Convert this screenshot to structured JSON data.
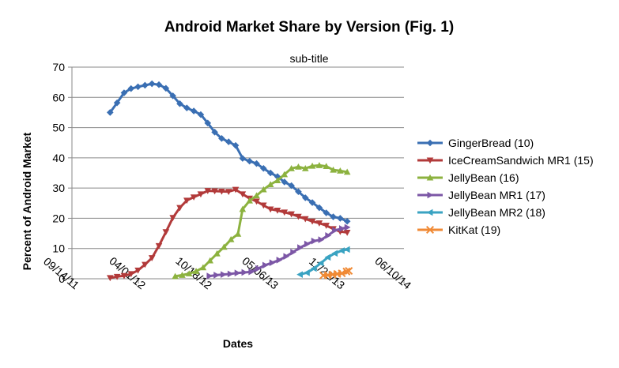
{
  "chart_data": {
    "type": "line",
    "title": "Android Market Share by Version (Fig. 1)",
    "subtitle": "sub-title",
    "xlabel": "Dates",
    "ylabel": "Percent of Android Market",
    "x_axis": {
      "type": "date",
      "min": "2011-09-14",
      "max": "2014-06-10",
      "ticks": [
        "2011-09-14",
        "2012-04-01",
        "2012-10-18",
        "2013-05-06",
        "2013-11-22",
        "2014-06-10"
      ],
      "tick_labels": [
        "09/14/11",
        "04/01/12",
        "10/18/12",
        "05/06/13",
        "11/22/13",
        "06/10/14"
      ]
    },
    "y_axis": {
      "min": 0,
      "max": 70,
      "ticks": [
        0,
        10,
        20,
        30,
        40,
        50,
        60,
        70
      ]
    },
    "grid": "horizontal",
    "legend_position": "right",
    "series": [
      {
        "name": "GingerBread (10)",
        "color": "#3a6fb3",
        "marker": "diamond",
        "points": [
          [
            "2012-01-07",
            55.0
          ],
          [
            "2012-01-28",
            58.2
          ],
          [
            "2012-02-18",
            61.5
          ],
          [
            "2012-03-10",
            62.9
          ],
          [
            "2012-03-31",
            63.5
          ],
          [
            "2012-04-21",
            64.0
          ],
          [
            "2012-05-12",
            64.5
          ],
          [
            "2012-06-02",
            64.2
          ],
          [
            "2012-06-23",
            63.0
          ],
          [
            "2012-07-14",
            60.5
          ],
          [
            "2012-08-04",
            57.9
          ],
          [
            "2012-08-25",
            56.5
          ],
          [
            "2012-09-15",
            55.5
          ],
          [
            "2012-10-06",
            54.3
          ],
          [
            "2012-10-27",
            51.5
          ],
          [
            "2012-11-17",
            48.5
          ],
          [
            "2012-12-08",
            46.4
          ],
          [
            "2012-12-29",
            45.3
          ],
          [
            "2013-01-19",
            44.1
          ],
          [
            "2013-02-09",
            39.8
          ],
          [
            "2013-03-02",
            38.9
          ],
          [
            "2013-03-23",
            38.1
          ],
          [
            "2013-04-13",
            36.5
          ],
          [
            "2013-05-04",
            35.0
          ],
          [
            "2013-05-25",
            33.8
          ],
          [
            "2013-06-15",
            32.0
          ],
          [
            "2013-07-06",
            30.8
          ],
          [
            "2013-07-27",
            28.8
          ],
          [
            "2013-08-17",
            26.8
          ],
          [
            "2013-09-07",
            25.2
          ],
          [
            "2013-09-28",
            23.5
          ],
          [
            "2013-10-19",
            21.8
          ],
          [
            "2013-11-09",
            20.5
          ],
          [
            "2013-11-30",
            20.0
          ],
          [
            "2013-12-21",
            19.0
          ]
        ]
      },
      {
        "name": "IceCreamSandwich MR1 (15)",
        "color": "#b23a3a",
        "marker": "triangle-down",
        "points": [
          [
            "2012-01-07",
            0.3
          ],
          [
            "2012-01-28",
            0.7
          ],
          [
            "2012-02-18",
            1.0
          ],
          [
            "2012-03-10",
            1.6
          ],
          [
            "2012-03-31",
            2.8
          ],
          [
            "2012-04-21",
            4.7
          ],
          [
            "2012-05-12",
            6.9
          ],
          [
            "2012-06-02",
            10.9
          ],
          [
            "2012-06-23",
            15.5
          ],
          [
            "2012-07-14",
            20.2
          ],
          [
            "2012-08-04",
            23.5
          ],
          [
            "2012-08-25",
            25.9
          ],
          [
            "2012-09-15",
            27.0
          ],
          [
            "2012-10-06",
            28.0
          ],
          [
            "2012-10-27",
            29.1
          ],
          [
            "2012-11-17",
            29.0
          ],
          [
            "2012-12-08",
            28.9
          ],
          [
            "2012-12-29",
            28.8
          ],
          [
            "2013-01-19",
            29.5
          ],
          [
            "2013-02-09",
            28.0
          ],
          [
            "2013-03-02",
            26.6
          ],
          [
            "2013-03-23",
            25.6
          ],
          [
            "2013-04-13",
            24.3
          ],
          [
            "2013-05-04",
            23.0
          ],
          [
            "2013-05-25",
            22.6
          ],
          [
            "2013-06-15",
            22.0
          ],
          [
            "2013-07-06",
            21.4
          ],
          [
            "2013-07-27",
            20.6
          ],
          [
            "2013-08-17",
            19.8
          ],
          [
            "2013-09-07",
            19.0
          ],
          [
            "2013-09-28",
            18.4
          ],
          [
            "2013-10-19",
            17.6
          ],
          [
            "2013-11-09",
            16.5
          ],
          [
            "2013-11-30",
            15.6
          ],
          [
            "2013-12-21",
            15.3
          ]
        ]
      },
      {
        "name": "JellyBean (16)",
        "color": "#8cb23f",
        "marker": "triangle-up",
        "points": [
          [
            "2012-07-21",
            0.8
          ],
          [
            "2012-08-11",
            1.2
          ],
          [
            "2012-09-01",
            1.7
          ],
          [
            "2012-09-22",
            2.5
          ],
          [
            "2012-10-13",
            3.7
          ],
          [
            "2012-11-03",
            6.0
          ],
          [
            "2012-11-24",
            8.3
          ],
          [
            "2012-12-15",
            10.5
          ],
          [
            "2013-01-05",
            13.0
          ],
          [
            "2013-01-26",
            14.8
          ],
          [
            "2013-02-09",
            23.0
          ],
          [
            "2013-03-02",
            25.8
          ],
          [
            "2013-03-23",
            27.5
          ],
          [
            "2013-04-13",
            29.5
          ],
          [
            "2013-05-04",
            31.2
          ],
          [
            "2013-05-25",
            32.5
          ],
          [
            "2013-06-15",
            34.5
          ],
          [
            "2013-07-06",
            36.5
          ],
          [
            "2013-07-27",
            37.0
          ],
          [
            "2013-08-17",
            36.5
          ],
          [
            "2013-09-07",
            37.3
          ],
          [
            "2013-09-28",
            37.5
          ],
          [
            "2013-10-19",
            37.2
          ],
          [
            "2013-11-09",
            36.0
          ],
          [
            "2013-11-30",
            35.7
          ],
          [
            "2013-12-21",
            35.3
          ]
        ]
      },
      {
        "name": "JellyBean MR1 (17)",
        "color": "#7c57a6",
        "marker": "triangle-right",
        "points": [
          [
            "2012-11-01",
            0.9
          ],
          [
            "2012-11-22",
            1.2
          ],
          [
            "2012-12-13",
            1.4
          ],
          [
            "2013-01-03",
            1.6
          ],
          [
            "2013-01-24",
            1.9
          ],
          [
            "2013-02-14",
            2.1
          ],
          [
            "2013-03-07",
            2.3
          ],
          [
            "2013-03-28",
            3.4
          ],
          [
            "2013-04-18",
            4.5
          ],
          [
            "2013-05-09",
            5.3
          ],
          [
            "2013-05-30",
            6.2
          ],
          [
            "2013-06-20",
            7.4
          ],
          [
            "2013-07-11",
            8.8
          ],
          [
            "2013-08-01",
            10.3
          ],
          [
            "2013-08-22",
            11.5
          ],
          [
            "2013-09-12",
            12.5
          ],
          [
            "2013-10-03",
            12.9
          ],
          [
            "2013-10-24",
            14.3
          ],
          [
            "2013-11-14",
            16.0
          ],
          [
            "2013-12-05",
            16.6
          ],
          [
            "2013-12-21",
            17.0
          ]
        ]
      },
      {
        "name": "JellyBean MR2 (18)",
        "color": "#3aa3c2",
        "marker": "triangle-left",
        "points": [
          [
            "2013-08-01",
            1.4
          ],
          [
            "2013-08-22",
            2.0
          ],
          [
            "2013-09-12",
            3.4
          ],
          [
            "2013-10-03",
            5.2
          ],
          [
            "2013-10-24",
            7.1
          ],
          [
            "2013-11-14",
            8.4
          ],
          [
            "2013-12-05",
            9.3
          ],
          [
            "2013-12-21",
            9.7
          ]
        ]
      },
      {
        "name": "KitKat (19)",
        "color": "#f08a35",
        "marker": "x",
        "points": [
          [
            "2013-10-10",
            1.1
          ],
          [
            "2013-10-24",
            1.2
          ],
          [
            "2013-11-07",
            1.4
          ],
          [
            "2013-11-21",
            1.6
          ],
          [
            "2013-12-05",
            1.8
          ],
          [
            "2013-12-19",
            2.4
          ],
          [
            "2013-12-26",
            2.6
          ]
        ]
      }
    ]
  }
}
